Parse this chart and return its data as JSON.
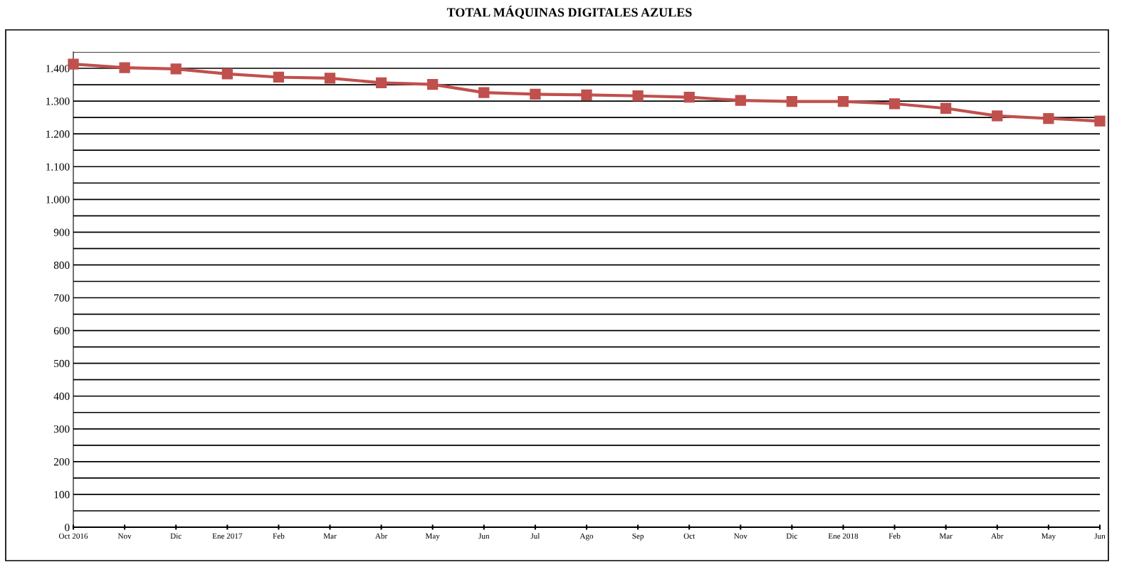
{
  "chart_data": {
    "type": "line",
    "title": "TOTAL MÁQUINAS DIGITALES AZULES",
    "categories": [
      "Oct 2016",
      "Nov",
      "Dic",
      "Ene 2017",
      "Feb",
      "Mar",
      "Abr",
      "May",
      "Jun",
      "Jul",
      "Ago",
      "Sep",
      "Oct",
      "Nov",
      "Dic",
      "Ene 2018",
      "Feb",
      "Mar",
      "Abr",
      "May",
      "Jun"
    ],
    "series": [
      {
        "color": "#c0504d",
        "values": [
          1413,
          1402,
          1398,
          1383,
          1373,
          1370,
          1356,
          1351,
          1326,
          1321,
          1319,
          1316,
          1312,
          1302,
          1299,
          1299,
          1292,
          1278,
          1255,
          1247,
          1239
        ]
      }
    ],
    "ylim": [
      0,
      1450
    ],
    "yticks": [
      0,
      {
        "value": 50,
        "label": null
      },
      {
        "value": 100,
        "label": "100"
      },
      {
        "value": 150,
        "label": null
      },
      200,
      {
        "value": 250,
        "label": null
      },
      300,
      {
        "value": 350,
        "label": null
      },
      400,
      {
        "value": 450,
        "label": null
      },
      500,
      {
        "value": 550,
        "label": null
      },
      600,
      {
        "value": 650,
        "label": null
      },
      700,
      {
        "value": 750,
        "label": null
      },
      800,
      {
        "value": 850,
        "label": null
      },
      900,
      {
        "value": 950,
        "label": null
      },
      {
        "value": 1000,
        "label": "1.000"
      },
      {
        "value": 1050,
        "label": null
      },
      {
        "value": 1100,
        "label": "1.100"
      },
      {
        "value": 1150,
        "label": null
      },
      {
        "value": 1200,
        "label": "1.200"
      },
      {
        "value": 1250,
        "label": null
      },
      {
        "value": 1300,
        "label": "1.300"
      },
      {
        "value": 1350,
        "label": null
      },
      {
        "value": 1400,
        "label": "1.400"
      },
      {
        "value": 1450,
        "label": null
      }
    ],
    "grid": "y",
    "marker": "square",
    "line_style": "solid"
  }
}
